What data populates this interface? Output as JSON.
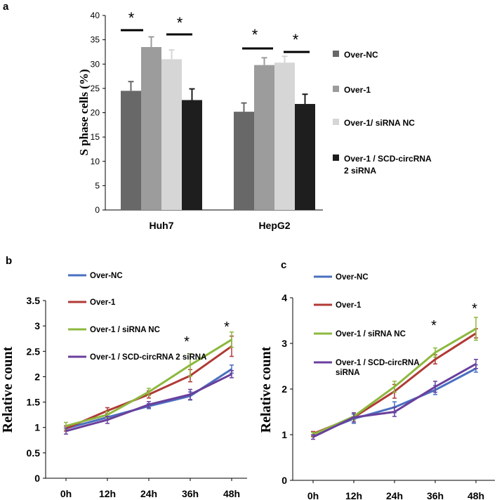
{
  "chart_data": [
    {
      "panel": "a",
      "type": "bar",
      "ylabel": "S phase cells (%)",
      "ylim": [
        0,
        40
      ],
      "yticks": [
        0,
        5,
        10,
        15,
        20,
        25,
        30,
        35,
        40
      ],
      "categories": [
        "Huh7",
        "HepG2"
      ],
      "series": [
        {
          "name": "Over-NC",
          "color": "#686868",
          "values": [
            24.5,
            20.2
          ],
          "errors": [
            1.9,
            1.8
          ]
        },
        {
          "name": "Over-1",
          "color": "#9c9c9c",
          "values": [
            33.5,
            29.8
          ],
          "errors": [
            2.1,
            1.5
          ]
        },
        {
          "name": "Over-1/ siRNA NC",
          "color": "#d6d6d6",
          "values": [
            31.0,
            30.3
          ],
          "errors": [
            1.9,
            1.3
          ]
        },
        {
          "name": "Over-1 / SCD-circRNA 2 siRNA",
          "color": "#1e1e1e",
          "values": [
            22.6,
            21.8
          ],
          "errors": [
            2.3,
            2.0
          ]
        }
      ],
      "legend_lines": [
        [
          "Over-NC"
        ],
        [
          "Over-1"
        ],
        [
          "Over-1/ siRNA NC"
        ],
        [
          "Over-1 / SCD-circRNA",
          "2 siRNA"
        ]
      ],
      "annotations": [
        "*",
        "*",
        "*",
        "*"
      ]
    },
    {
      "panel": "b",
      "type": "line",
      "ylabel": "Relative count",
      "ylim": [
        0,
        3.5
      ],
      "yticks": [
        "0",
        "0.5",
        "1",
        "1.5",
        "2",
        "2.5",
        "3",
        "3.5"
      ],
      "categories": [
        "0h",
        "12h",
        "24h",
        "36h",
        "48h"
      ],
      "series": [
        {
          "name": "Over-NC",
          "color": "#4a6fbf",
          "values": [
            0.98,
            1.2,
            1.42,
            1.62,
            2.15
          ],
          "errors": [
            0.05,
            0.05,
            0.05,
            0.08,
            0.08
          ]
        },
        {
          "name": "Over-1",
          "color": "#b03a35",
          "values": [
            0.98,
            1.33,
            1.65,
            2.02,
            2.6
          ],
          "errors": [
            0.05,
            0.06,
            0.07,
            0.12,
            0.2
          ]
        },
        {
          "name": "Over-1 / siRNA NC",
          "color": "#8db83e",
          "values": [
            1.03,
            1.25,
            1.7,
            2.23,
            2.73
          ],
          "errors": [
            0.07,
            0.06,
            0.07,
            0.22,
            0.15
          ]
        },
        {
          "name": "Over-1 / SCD-circRNA 2 siRNA",
          "color": "#6a3f9c",
          "values": [
            0.93,
            1.15,
            1.45,
            1.65,
            2.05
          ],
          "errors": [
            0.06,
            0.07,
            0.06,
            0.1,
            0.07
          ]
        }
      ],
      "legend_lines": [
        [
          "Over-NC"
        ],
        [
          "Over-1"
        ],
        [
          "Over-1 / siRNA NC"
        ],
        [
          "Over-1 / SCD-circRNA 2 siRNA"
        ]
      ],
      "annotations": [
        "*",
        "*"
      ]
    },
    {
      "panel": "c",
      "type": "line",
      "ylabel": "Relative count",
      "ylim": [
        0,
        4
      ],
      "yticks": [
        "0",
        "1",
        "2",
        "3",
        "4"
      ],
      "categories": [
        "0h",
        "12h",
        "24h",
        "36h",
        "48h"
      ],
      "series": [
        {
          "name": "Over-NC",
          "color": "#4a6fbf",
          "values": [
            1.0,
            1.35,
            1.6,
            1.98,
            2.45
          ],
          "errors": [
            0.05,
            0.1,
            0.12,
            0.1,
            0.08
          ]
        },
        {
          "name": "Over-1",
          "color": "#b03a35",
          "values": [
            1.02,
            1.38,
            1.95,
            2.65,
            3.22
          ],
          "errors": [
            0.05,
            0.1,
            0.15,
            0.1,
            0.1
          ]
        },
        {
          "name": "Over-1 / siRNA NC",
          "color": "#8db83e",
          "values": [
            1.0,
            1.4,
            2.05,
            2.8,
            3.32
          ],
          "errors": [
            0.05,
            0.08,
            0.12,
            0.1,
            0.25
          ]
        },
        {
          "name": "Over-1 / SCD-circRNA siRNA",
          "color": "#6a3f9c",
          "values": [
            0.95,
            1.38,
            1.5,
            2.05,
            2.55
          ],
          "errors": [
            0.05,
            0.1,
            0.1,
            0.12,
            0.1
          ]
        }
      ],
      "legend_lines": [
        [
          "Over-NC"
        ],
        [
          "Over-1"
        ],
        [
          "Over-1 / siRNA NC"
        ],
        [
          "Over-1 / SCD-circRNA",
          "siRNA"
        ]
      ],
      "annotations": [
        "*",
        "*"
      ]
    }
  ]
}
